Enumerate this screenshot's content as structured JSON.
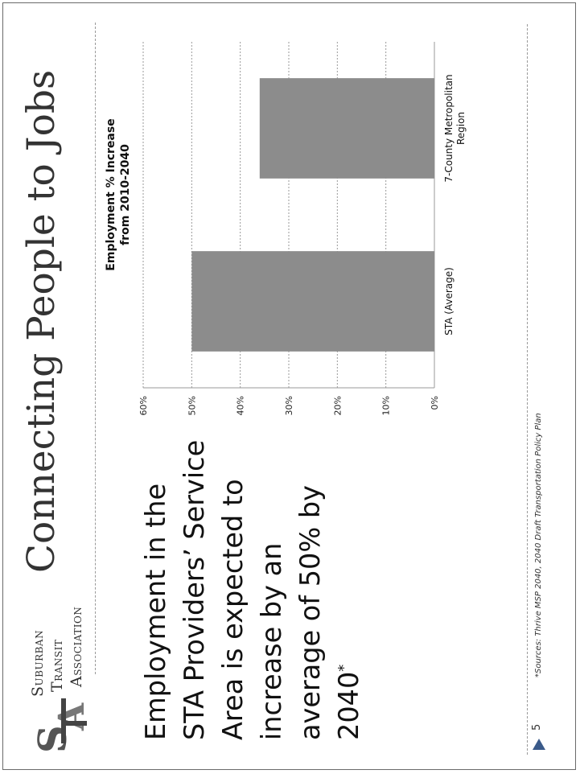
{
  "organization": {
    "line1_initial": "S",
    "line1_rest": "UBURBAN",
    "line2_initial": "T",
    "line2_rest": "RANSIT",
    "line3_initial": "A",
    "line3_rest": "SSOCIATION",
    "logo_letters": "STA"
  },
  "slide": {
    "title": "Connecting People to Jobs",
    "body_text": "Employment in the STA Providers’ Service Area is expected to increase by an average of 50% by 2040",
    "body_footnote_mark": "*",
    "page_number": "5",
    "source_note": "*Sources: Thrive MSP 2040, 2040 Draft Transportation Policy Plan"
  },
  "colors": {
    "bar": "#8c8c8c",
    "grid": "#9a9a9a",
    "text": "#1a1a1a"
  },
  "chart_data": {
    "type": "bar",
    "title_line1": "Employment % Increase",
    "title_line2": "from 2010-2040",
    "categories": [
      "STA (Average)",
      "7-County Metropolitan Region"
    ],
    "category_label_lines": [
      [
        "STA (Average)"
      ],
      [
        "7-County Metropolitan",
        "Region"
      ]
    ],
    "values": [
      50,
      36
    ],
    "unit": "%",
    "ylim": [
      0,
      60
    ],
    "yticks": [
      0,
      10,
      20,
      30,
      40,
      50,
      60
    ],
    "ytick_labels": [
      "0%",
      "10%",
      "20%",
      "30%",
      "40%",
      "50%",
      "60%"
    ],
    "grid": true,
    "legend": "none"
  }
}
